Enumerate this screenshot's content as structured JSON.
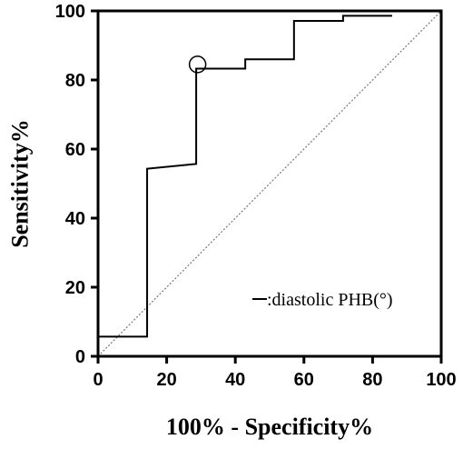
{
  "chart_data": {
    "type": "line",
    "xlabel": "100% - Specificity%",
    "ylabel": "Sensitivity%",
    "xlim": [
      0,
      100
    ],
    "ylim": [
      0,
      100
    ],
    "xticks": [
      0,
      20,
      40,
      60,
      80,
      100
    ],
    "yticks": [
      0,
      20,
      40,
      60,
      80,
      100
    ],
    "grid": false,
    "legend_position": "bottom-right",
    "series": [
      {
        "name": ":diastolic PHB(°)",
        "color": "#000000",
        "x": [
          0,
          14.3,
          14.3,
          28.6,
          28.6,
          28.6,
          42.9,
          42.9,
          57.1,
          57.1,
          71.4,
          71.4,
          85.7
        ],
        "y": [
          5.7,
          5.7,
          54.3,
          55.7,
          83.2,
          83.3,
          83.3,
          86,
          86,
          97.1,
          97.1,
          98.6,
          98.6
        ]
      }
    ],
    "reference_line": {
      "x": [
        0,
        100
      ],
      "y": [
        0,
        100
      ],
      "color": "#777777"
    },
    "marker": {
      "x": 29,
      "y": 84.5
    }
  }
}
